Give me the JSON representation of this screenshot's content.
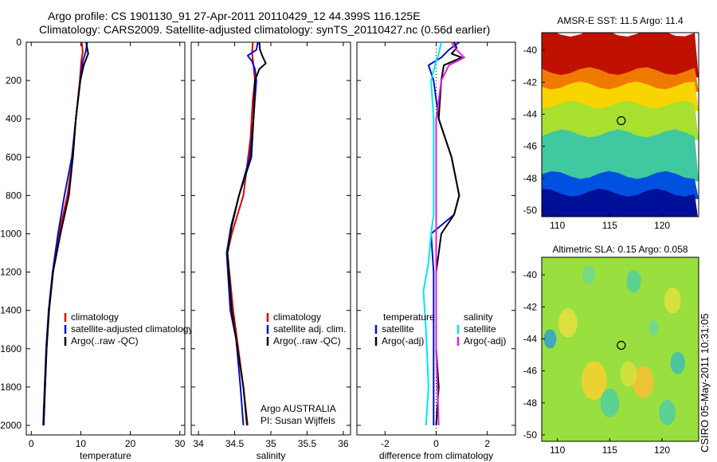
{
  "header": {
    "line1": "Argo profile: CS 1901130_91 27-Apr-2011 20110429_12 44.399S 116.125E",
    "line2": "Climatology: CARS2009. Satellite-adjusted climatology: synTS_20110427.nc (0.56d earlier)"
  },
  "side_label": "CSIRO 05-May-2011 10:31:05",
  "colors": {
    "red": "#e00000",
    "blue": "#0010d0",
    "black": "#000000",
    "cyan": "#00e8f0",
    "magenta": "#e020e0"
  },
  "chart_data": [
    {
      "type": "line",
      "xlabel": "temperature",
      "xlim": [
        -1,
        31
      ],
      "ylim": [
        2050,
        0
      ],
      "x_ticks": [
        "0",
        "10",
        "20",
        "30"
      ],
      "y_ticks": [
        "0",
        "200",
        "400",
        "600",
        "800",
        "1000",
        "1200",
        "1400",
        "1600",
        "1800",
        "2000"
      ],
      "legend": [
        "climatology",
        "satellite-adjusted climatology",
        "Argo(..raw -QC)"
      ],
      "series": [
        {
          "name": "climatology",
          "color": "red",
          "points": [
            [
              10.2,
              0
            ],
            [
              10.4,
              50
            ],
            [
              10.1,
              100
            ],
            [
              9.8,
              200
            ],
            [
              9.0,
              400
            ],
            [
              8.4,
              600
            ],
            [
              7.3,
              800
            ],
            [
              5.6,
              1000
            ],
            [
              4.4,
              1200
            ],
            [
              3.6,
              1400
            ],
            [
              3.1,
              1600
            ],
            [
              2.8,
              1800
            ],
            [
              2.5,
              2000
            ]
          ]
        },
        {
          "name": "satellite-adjusted climatology",
          "color": "blue",
          "points": [
            [
              11.3,
              0
            ],
            [
              11.0,
              50
            ],
            [
              10.4,
              100
            ],
            [
              9.9,
              200
            ],
            [
              9.0,
              400
            ],
            [
              8.2,
              600
            ],
            [
              6.7,
              800
            ],
            [
              5.4,
              1000
            ],
            [
              4.3,
              1200
            ],
            [
              3.5,
              1400
            ],
            [
              3.0,
              1600
            ],
            [
              2.7,
              1800
            ],
            [
              2.4,
              2000
            ]
          ]
        },
        {
          "name": "Argo(..raw -QC)",
          "color": "black",
          "points": [
            [
              11.1,
              0
            ],
            [
              11.5,
              60
            ],
            [
              10.6,
              120
            ],
            [
              9.9,
              200
            ],
            [
              9.0,
              400
            ],
            [
              8.4,
              600
            ],
            [
              7.6,
              800
            ],
            [
              5.9,
              1000
            ],
            [
              4.4,
              1200
            ],
            [
              3.6,
              1400
            ],
            [
              3.1,
              1600
            ],
            [
              2.8,
              1800
            ],
            [
              2.5,
              2000
            ]
          ]
        }
      ]
    },
    {
      "type": "line",
      "xlabel": "salinity",
      "xlim": [
        33.9,
        36.1
      ],
      "ylim": [
        2050,
        0
      ],
      "x_ticks": [
        "34",
        "34.5",
        "35",
        "35.5",
        "36"
      ],
      "legend": [
        "climatology",
        "satellite adj. clim.",
        "Argo(..raw -QC)"
      ],
      "annotation": [
        "Argo AUSTRALIA",
        "PI: Susan Wijffels"
      ],
      "series": [
        {
          "name": "climatology",
          "color": "red",
          "points": [
            [
              34.75,
              0
            ],
            [
              34.74,
              60
            ],
            [
              34.76,
              120
            ],
            [
              34.78,
              200
            ],
            [
              34.75,
              300
            ],
            [
              34.72,
              500
            ],
            [
              34.62,
              800
            ],
            [
              34.46,
              1000
            ],
            [
              34.4,
              1100
            ],
            [
              34.48,
              1400
            ],
            [
              34.62,
              1800
            ],
            [
              34.68,
              2000
            ]
          ]
        },
        {
          "name": "satellite adj. clim.",
          "color": "blue",
          "points": [
            [
              34.82,
              0
            ],
            [
              34.8,
              40
            ],
            [
              34.68,
              70
            ],
            [
              34.74,
              100
            ],
            [
              34.78,
              140
            ],
            [
              34.8,
              200
            ],
            [
              34.76,
              400
            ],
            [
              34.71,
              600
            ],
            [
              34.56,
              800
            ],
            [
              34.45,
              960
            ],
            [
              34.39,
              1100
            ],
            [
              34.44,
              1400
            ],
            [
              34.52,
              1550
            ],
            [
              34.58,
              1800
            ],
            [
              34.62,
              2000
            ]
          ]
        },
        {
          "name": "Argo(..raw -QC)",
          "color": "black",
          "points": [
            [
              34.84,
              0
            ],
            [
              34.85,
              40
            ],
            [
              34.88,
              70
            ],
            [
              34.93,
              110
            ],
            [
              34.84,
              140
            ],
            [
              34.78,
              200
            ],
            [
              34.76,
              400
            ],
            [
              34.73,
              600
            ],
            [
              34.56,
              800
            ],
            [
              34.46,
              960
            ],
            [
              34.4,
              1100
            ],
            [
              34.46,
              1400
            ],
            [
              34.62,
              1800
            ],
            [
              34.67,
              2000
            ]
          ]
        }
      ]
    },
    {
      "type": "line",
      "xlabel": "difference from climatology",
      "xlim": [
        -3.1,
        3.1
      ],
      "ylim": [
        2050,
        0
      ],
      "x_ticks": [
        "-2",
        "0",
        "2"
      ],
      "legend_left": [
        "temperature",
        "satellite",
        "Argo(-adj)"
      ],
      "legend_right": [
        "salinity",
        "satellite",
        "Argo(-adj)"
      ],
      "series": [
        {
          "name": "temperature satellite",
          "color": "blue",
          "points": [
            [
              0.9,
              0
            ],
            [
              0.5,
              40
            ],
            [
              0.2,
              80
            ],
            [
              -0.3,
              120
            ],
            [
              -0.1,
              200
            ],
            [
              0.0,
              300
            ],
            [
              0.1,
              400
            ],
            [
              0.6,
              600
            ],
            [
              0.9,
              800
            ],
            [
              0.7,
              900
            ],
            [
              -0.2,
              1000
            ],
            [
              -0.1,
              1200
            ],
            [
              -0.1,
              1400
            ],
            [
              -0.1,
              1600
            ],
            [
              -0.1,
              1800
            ],
            [
              -0.1,
              2000
            ]
          ]
        },
        {
          "name": "temperature Argo(-adj)",
          "color": "black",
          "points": [
            [
              0.7,
              0
            ],
            [
              0.8,
              30
            ],
            [
              0.6,
              60
            ],
            [
              1.0,
              80
            ],
            [
              0.3,
              120
            ],
            [
              0.2,
              200
            ],
            [
              0.1,
              400
            ],
            [
              0.6,
              600
            ],
            [
              0.9,
              800
            ],
            [
              0.7,
              900
            ],
            [
              0.2,
              1000
            ],
            [
              0.0,
              1200
            ],
            [
              0.0,
              1400
            ],
            [
              0.0,
              1600
            ],
            [
              0.1,
              1800
            ],
            [
              0.0,
              2000
            ]
          ]
        },
        {
          "name": "salinity satellite",
          "color": "cyan",
          "points": [
            [
              0.2,
              0
            ],
            [
              0.1,
              60
            ],
            [
              0.0,
              100
            ],
            [
              -0.2,
              200
            ],
            [
              -0.1,
              400
            ],
            [
              -0.1,
              700
            ],
            [
              -0.1,
              900
            ],
            [
              -0.2,
              1000
            ],
            [
              -0.3,
              1150
            ],
            [
              -0.5,
              1300
            ],
            [
              -0.4,
              1500
            ],
            [
              -0.3,
              1800
            ],
            [
              -0.4,
              2000
            ]
          ]
        },
        {
          "name": "salinity Argo(-adj)",
          "color": "magenta",
          "points": [
            [
              0.6,
              0
            ],
            [
              0.8,
              40
            ],
            [
              1.1,
              80
            ],
            [
              0.5,
              120
            ],
            [
              0.2,
              200
            ],
            [
              0.0,
              400
            ],
            [
              0.0,
              700
            ],
            [
              0.0,
              1000
            ],
            [
              0.0,
              1300
            ],
            [
              0.0,
              1600
            ],
            [
              0.1,
              2000
            ]
          ]
        }
      ]
    },
    {
      "type": "heatmap",
      "title": "AMSR-E SST: 11.5 Argo: 11.4",
      "x_ticks": [
        "110",
        "115",
        "120"
      ],
      "y_ticks": [
        "-40",
        "-42",
        "-44",
        "-46",
        "-48",
        "-50"
      ],
      "xlim": [
        108.5,
        123.5
      ],
      "ylim": [
        -50.4,
        -38.9
      ],
      "marker": [
        116.1,
        -44.4
      ],
      "bands": [
        {
          "from": -38.9,
          "to": -41.3,
          "color": "#c01000"
        },
        {
          "from": -41.3,
          "to": -42.2,
          "color": "#f07a00"
        },
        {
          "from": -42.2,
          "to": -43.4,
          "color": "#f8d400"
        },
        {
          "from": -43.4,
          "to": -45.2,
          "color": "#a8e030"
        },
        {
          "from": -45.2,
          "to": -47.8,
          "color": "#40c8a0"
        },
        {
          "from": -47.8,
          "to": -48.9,
          "color": "#0050e0"
        },
        {
          "from": -48.9,
          "to": -50.4,
          "color": "#001098"
        }
      ]
    },
    {
      "type": "heatmap",
      "title": "Altimetric SLA: 0.15 Argo: 0.058",
      "x_ticks": [
        "110",
        "115",
        "120"
      ],
      "y_ticks": [
        "-40",
        "-42",
        "-44",
        "-46",
        "-48",
        "-50"
      ],
      "xlim": [
        108.5,
        123.5
      ],
      "ylim": [
        -50.4,
        -38.9
      ],
      "marker": [
        116.1,
        -44.4
      ],
      "base_color": "#9adf40",
      "blobs": [
        {
          "x": 113.5,
          "y": -46.6,
          "r": 1.2,
          "color": "#f8d030"
        },
        {
          "x": 118.2,
          "y": -46.7,
          "r": 1.0,
          "color": "#f8c030"
        },
        {
          "x": 111.0,
          "y": -43.0,
          "r": 0.9,
          "color": "#e8e040"
        },
        {
          "x": 121.0,
          "y": -41.6,
          "r": 0.8,
          "color": "#e0e040"
        },
        {
          "x": 109.3,
          "y": -44.0,
          "r": 0.6,
          "color": "#30a0d0"
        },
        {
          "x": 115.0,
          "y": -48.0,
          "r": 0.9,
          "color": "#50d0a0"
        },
        {
          "x": 120.5,
          "y": -48.6,
          "r": 0.8,
          "color": "#50d0a0"
        },
        {
          "x": 117.3,
          "y": -40.4,
          "r": 0.7,
          "color": "#50d0a0"
        },
        {
          "x": 113.0,
          "y": -40.0,
          "r": 0.6,
          "color": "#70d890"
        },
        {
          "x": 121.5,
          "y": -45.5,
          "r": 0.7,
          "color": "#40c0b0"
        },
        {
          "x": 119.2,
          "y": -43.3,
          "r": 0.5,
          "color": "#70d890"
        },
        {
          "x": 116.8,
          "y": -46.2,
          "r": 0.8,
          "color": "#d8e040"
        }
      ]
    }
  ]
}
